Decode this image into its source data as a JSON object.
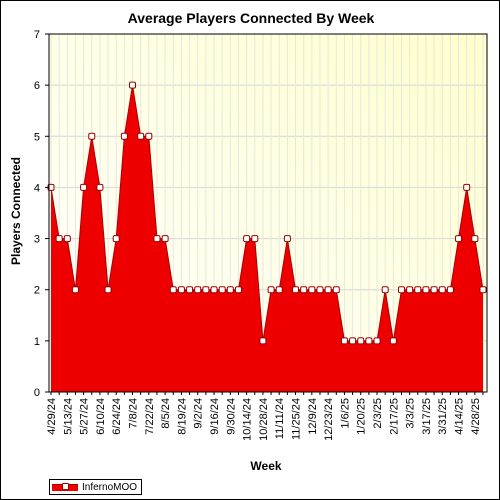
{
  "chart_data": {
    "type": "area",
    "title": "Average Players Connected By Week",
    "xlabel": "Week",
    "ylabel": "Players Connected",
    "ylim": [
      0,
      7
    ],
    "yticks": [
      0,
      1,
      2,
      3,
      4,
      5,
      6,
      7
    ],
    "grid": true,
    "legend_position": "bottom-left",
    "x_tick_labels": [
      "4/29/24",
      "5/13/24",
      "5/27/24",
      "6/10/24",
      "6/24/24",
      "7/8/24",
      "7/22/24",
      "8/5/24",
      "8/19/24",
      "9/2/24",
      "9/16/24",
      "9/30/24",
      "10/14/24",
      "10/28/24",
      "11/11/24",
      "11/25/24",
      "12/9/24",
      "12/23/24",
      "1/6/25",
      "1/20/25",
      "2/3/25",
      "2/17/25",
      "3/3/25",
      "3/17/25",
      "3/31/25",
      "4/14/25",
      "4/28/25"
    ],
    "series": [
      {
        "name": "InfernoMOO",
        "color": "#ee0000",
        "marker_color": "#ffffff",
        "values": [
          4,
          3,
          3,
          2,
          4,
          5,
          4,
          2,
          3,
          5,
          6,
          5,
          5,
          3,
          3,
          2,
          2,
          2,
          2,
          2,
          2,
          2,
          2,
          2,
          3,
          3,
          1,
          2,
          2,
          3,
          2,
          2,
          2,
          2,
          2,
          2,
          1,
          1,
          1,
          1,
          1,
          2,
          1,
          2,
          2,
          2,
          2,
          2,
          2,
          2,
          3,
          4,
          3,
          2
        ]
      }
    ]
  }
}
